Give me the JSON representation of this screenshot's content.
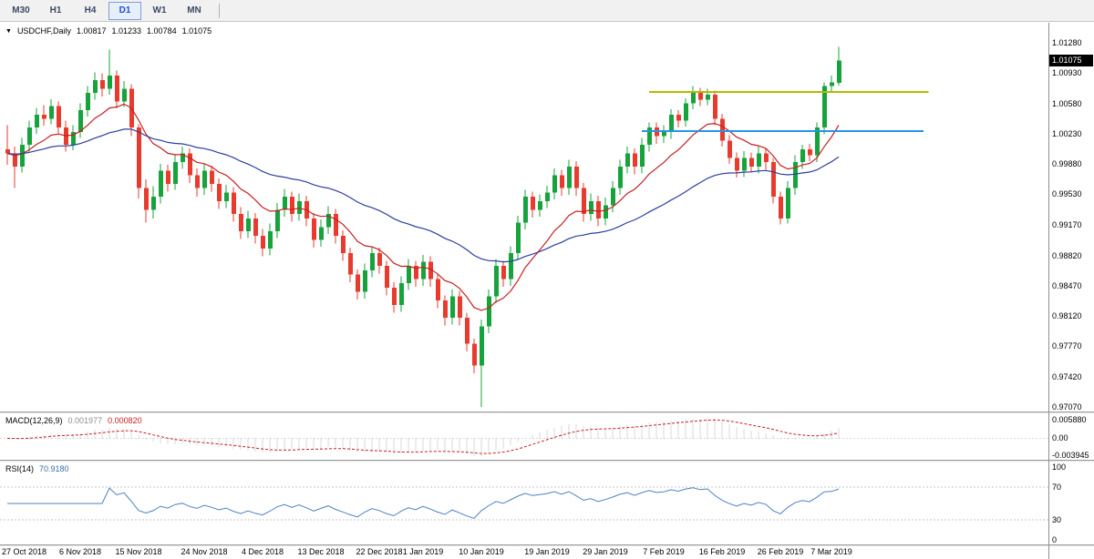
{
  "toolbar": {
    "timeframes": [
      "M30",
      "H1",
      "H4",
      "D1",
      "W1",
      "MN"
    ],
    "selected": "D1"
  },
  "icons": {
    "dropdown": "▼"
  },
  "symbol_bar": {
    "symbol": "USDCHF,Daily",
    "open": "1.00817",
    "high": "1.01233",
    "low": "1.00784",
    "close": "1.01075"
  },
  "price_axis": {
    "labels": [
      "1.01280",
      "1.00930",
      "1.00580",
      "1.00230",
      "0.99880",
      "0.99530",
      "0.99170",
      "0.98820",
      "0.98470",
      "0.98120",
      "0.97770",
      "0.97420",
      "0.97070"
    ],
    "current_price": "1.01075"
  },
  "macd_panel": {
    "label": "MACD(12,26,9)",
    "main_value": "0.001977",
    "signal_value": "0.000820",
    "axis": [
      "0.005880",
      "0.00",
      "-0.003945"
    ]
  },
  "rsi_panel": {
    "label": "RSI(14)",
    "value": "70.9180",
    "axis": [
      "100",
      "70",
      "30",
      "0"
    ]
  },
  "chart_data": {
    "type": "candlestick",
    "title": "USDCHF Daily",
    "ylim": [
      0.9707,
      1.0128
    ],
    "colors": {
      "up": "#17a33c",
      "down": "#e83b2e"
    },
    "overlays": [
      {
        "name": "ma-fast",
        "period": 12,
        "color": "#c82020"
      },
      {
        "name": "ma-slow",
        "period": 40,
        "color": "#2b3f9c"
      }
    ],
    "macd": {
      "fast": 12,
      "slow": 26,
      "signal": 9,
      "hist_color": "#b2b2b2",
      "signal_color": "#c82020"
    },
    "rsi": {
      "period": 14,
      "color": "#4e80c4",
      "levels": [
        70,
        30
      ]
    },
    "trendlines": [
      {
        "name": "resistance-line",
        "price": 1.0071,
        "from": 88,
        "to": 126.3,
        "color": "#b5b900",
        "width": 2
      },
      {
        "name": "support-line",
        "price": 1.0026,
        "from": 87,
        "to": 125.6,
        "color": "#2694e8",
        "width": 2
      }
    ],
    "x_labels": [
      {
        "t": "27 Oct 2018",
        "i": 0
      },
      {
        "t": "6 Nov 2018",
        "i": 10
      },
      {
        "t": "15 Nov 2018",
        "i": 18
      },
      {
        "t": "24 Nov 2018",
        "i": 27
      },
      {
        "t": "4 Dec 2018",
        "i": 35
      },
      {
        "t": "13 Dec 2018",
        "i": 43
      },
      {
        "t": "22 Dec 2018",
        "i": 51
      },
      {
        "t": "1 Jan 2019",
        "i": 57
      },
      {
        "t": "10 Jan 2019",
        "i": 65
      },
      {
        "t": "19 Jan 2019",
        "i": 74
      },
      {
        "t": "29 Jan 2019",
        "i": 82
      },
      {
        "t": "7 Feb 2019",
        "i": 90
      },
      {
        "t": "16 Feb 2019",
        "i": 98
      },
      {
        "t": "26 Feb 2019",
        "i": 106
      },
      {
        "t": "7 Mar 2019",
        "i": 113
      }
    ],
    "ohlc": [
      [
        1.0005,
        1.0033,
        0.9987,
        1.0
      ],
      [
        1.0,
        1.0008,
        0.996,
        0.9985
      ],
      [
        0.9985,
        1.0018,
        0.9978,
        1.001
      ],
      [
        1.001,
        1.0038,
        1.0002,
        1.003
      ],
      [
        1.003,
        1.0053,
        1.0023,
        1.0045
      ],
      [
        1.0045,
        1.0056,
        1.0032,
        1.004
      ],
      [
        1.004,
        1.0063,
        1.0034,
        1.0055
      ],
      [
        1.0055,
        1.006,
        1.0022,
        1.003
      ],
      [
        1.003,
        1.0038,
        1.0002,
        1.001
      ],
      [
        1.001,
        1.0033,
        1.0004,
        1.0025
      ],
      [
        1.0025,
        1.0058,
        1.0018,
        1.005
      ],
      [
        1.005,
        1.0078,
        1.0043,
        1.007
      ],
      [
        1.007,
        1.0094,
        1.0062,
        1.0085
      ],
      [
        1.0085,
        1.0093,
        1.0066,
        1.0075
      ],
      [
        1.0075,
        1.012,
        1.0068,
        1.009
      ],
      [
        1.009,
        1.0096,
        1.0052,
        1.006
      ],
      [
        1.006,
        1.0084,
        1.0054,
        1.0075
      ],
      [
        1.0075,
        1.008,
        1.002,
        1.003
      ],
      [
        1.003,
        1.0034,
        0.9948,
        0.996
      ],
      [
        0.996,
        0.997,
        0.992,
        0.9935
      ],
      [
        0.9935,
        0.9962,
        0.9925,
        0.995
      ],
      [
        0.995,
        0.9988,
        0.9942,
        0.998
      ],
      [
        0.998,
        0.9987,
        0.9956,
        0.9965
      ],
      [
        0.9965,
        0.9998,
        0.9958,
        0.999
      ],
      [
        0.999,
        1.0008,
        0.9982,
        1.0
      ],
      [
        1.0,
        1.0006,
        0.9966,
        0.9975
      ],
      [
        0.9975,
        0.9983,
        0.995,
        0.996
      ],
      [
        0.996,
        0.9988,
        0.9952,
        0.998
      ],
      [
        0.998,
        0.9986,
        0.9956,
        0.9965
      ],
      [
        0.9965,
        0.9971,
        0.9936,
        0.9945
      ],
      [
        0.9945,
        0.9964,
        0.9937,
        0.9955
      ],
      [
        0.9955,
        0.9961,
        0.9921,
        0.993
      ],
      [
        0.993,
        0.9938,
        0.9901,
        0.991
      ],
      [
        0.991,
        0.9934,
        0.9902,
        0.9925
      ],
      [
        0.9925,
        0.9931,
        0.9896,
        0.9905
      ],
      [
        0.9905,
        0.9913,
        0.9881,
        0.989
      ],
      [
        0.989,
        0.9919,
        0.9882,
        0.991
      ],
      [
        0.991,
        0.9943,
        0.9902,
        0.9935
      ],
      [
        0.9935,
        0.9959,
        0.9927,
        0.995
      ],
      [
        0.995,
        0.9956,
        0.9921,
        0.993
      ],
      [
        0.993,
        0.9954,
        0.9922,
        0.9945
      ],
      [
        0.9945,
        0.9951,
        0.9916,
        0.9925
      ],
      [
        0.9925,
        0.9931,
        0.9891,
        0.99
      ],
      [
        0.99,
        0.9924,
        0.9892,
        0.9915
      ],
      [
        0.9915,
        0.9939,
        0.9907,
        0.993
      ],
      [
        0.993,
        0.9936,
        0.9896,
        0.9905
      ],
      [
        0.9905,
        0.9911,
        0.9876,
        0.9885
      ],
      [
        0.9885,
        0.9891,
        0.9851,
        0.986
      ],
      [
        0.986,
        0.9866,
        0.9831,
        0.984
      ],
      [
        0.984,
        0.9873,
        0.9832,
        0.9865
      ],
      [
        0.9865,
        0.9893,
        0.9857,
        0.9885
      ],
      [
        0.9885,
        0.9891,
        0.9861,
        0.987
      ],
      [
        0.987,
        0.9876,
        0.9836,
        0.9845
      ],
      [
        0.9845,
        0.9851,
        0.9816,
        0.9825
      ],
      [
        0.9825,
        0.9858,
        0.9817,
        0.985
      ],
      [
        0.985,
        0.9878,
        0.9842,
        0.987
      ],
      [
        0.987,
        0.9876,
        0.9846,
        0.9855
      ],
      [
        0.9855,
        0.9883,
        0.9847,
        0.9875
      ],
      [
        0.9875,
        0.9881,
        0.9846,
        0.9855
      ],
      [
        0.9855,
        0.9861,
        0.9821,
        0.983
      ],
      [
        0.983,
        0.9836,
        0.9801,
        0.981
      ],
      [
        0.981,
        0.9843,
        0.9802,
        0.9835
      ],
      [
        0.9835,
        0.9841,
        0.9801,
        0.981
      ],
      [
        0.981,
        0.9816,
        0.9771,
        0.978
      ],
      [
        0.978,
        0.9786,
        0.9746,
        0.9755
      ],
      [
        0.9755,
        0.9808,
        0.9707,
        0.98
      ],
      [
        0.98,
        0.9843,
        0.9792,
        0.9835
      ],
      [
        0.9835,
        0.9878,
        0.9827,
        0.987
      ],
      [
        0.987,
        0.9876,
        0.9846,
        0.9855
      ],
      [
        0.9855,
        0.9893,
        0.9847,
        0.9885
      ],
      [
        0.9885,
        0.9928,
        0.9877,
        0.992
      ],
      [
        0.992,
        0.9958,
        0.9912,
        0.995
      ],
      [
        0.995,
        0.9956,
        0.9926,
        0.9935
      ],
      [
        0.9935,
        0.9953,
        0.9927,
        0.9945
      ],
      [
        0.9945,
        0.9963,
        0.9937,
        0.9955
      ],
      [
        0.9955,
        0.9983,
        0.9947,
        0.9975
      ],
      [
        0.9975,
        0.9981,
        0.9951,
        0.996
      ],
      [
        0.996,
        0.9993,
        0.9952,
        0.9985
      ],
      [
        0.9985,
        0.9991,
        0.9951,
        0.996
      ],
      [
        0.996,
        0.9966,
        0.9921,
        0.993
      ],
      [
        0.993,
        0.9954,
        0.9922,
        0.9945
      ],
      [
        0.9945,
        0.9951,
        0.9916,
        0.9925
      ],
      [
        0.9925,
        0.9949,
        0.9917,
        0.994
      ],
      [
        0.994,
        0.9968,
        0.9932,
        0.996
      ],
      [
        0.996,
        0.9993,
        0.9952,
        0.9985
      ],
      [
        0.9985,
        1.0008,
        0.9977,
        1.0
      ],
      [
        1.0,
        1.0006,
        0.9976,
        0.9985
      ],
      [
        0.9985,
        1.0018,
        0.9977,
        1.001
      ],
      [
        1.001,
        1.0036,
        1.0002,
        1.003
      ],
      [
        1.003,
        1.0036,
        1.0011,
        1.002
      ],
      [
        1.002,
        1.0033,
        1.0012,
        1.0025
      ],
      [
        1.0025,
        1.0051,
        1.0017,
        1.0045
      ],
      [
        1.0045,
        1.005,
        1.003,
        1.0038
      ],
      [
        1.0038,
        1.0064,
        1.0031,
        1.0058
      ],
      [
        1.0058,
        1.0078,
        1.0051,
        1.007
      ],
      [
        1.007,
        1.0076,
        1.0055,
        1.0062
      ],
      [
        1.0062,
        1.0075,
        1.0056,
        1.0068
      ],
      [
        1.0068,
        1.0073,
        1.0033,
        1.004
      ],
      [
        1.004,
        1.0046,
        1.0008,
        1.0015
      ],
      [
        1.0015,
        1.0021,
        0.9988,
        0.9995
      ],
      [
        0.9995,
        1.0001,
        0.9972,
        0.998
      ],
      [
        0.998,
        1.0003,
        0.9973,
        0.9995
      ],
      [
        0.9995,
        1.0001,
        0.9978,
        0.9985
      ],
      [
        0.9985,
        1.0008,
        0.9977,
        1.0
      ],
      [
        1.0,
        1.0006,
        0.9981,
        0.999
      ],
      [
        0.999,
        0.9995,
        0.9942,
        0.995
      ],
      [
        0.995,
        0.9956,
        0.9918,
        0.9925
      ],
      [
        0.9925,
        0.9968,
        0.9919,
        0.996
      ],
      [
        0.996,
        0.9998,
        0.9952,
        0.999
      ],
      [
        0.999,
        1.001,
        0.9982,
        1.0005
      ],
      [
        1.0005,
        1.0011,
        0.9991,
        0.9998
      ],
      [
        0.9998,
        1.0036,
        0.999,
        1.003
      ],
      [
        1.003,
        1.0082,
        1.0022,
        1.0078
      ],
      [
        1.0078,
        1.009,
        1.007,
        1.0082
      ],
      [
        1.00817,
        1.01233,
        1.00784,
        1.01075
      ]
    ]
  }
}
